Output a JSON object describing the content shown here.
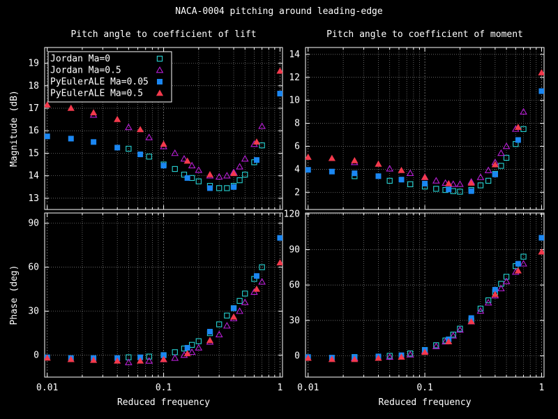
{
  "suptitle": "NACA-0004 pitching around leading-edge",
  "colors": {
    "jordan_ma0": "#27d3d3",
    "jordan_ma05": "#b81fd6",
    "pyeuler_ma005": "#1b87f2",
    "pyeuler_ma05": "#f43a4d"
  },
  "chart_data": [
    {
      "id": "lift-mag",
      "type": "scatter",
      "title": "Pitch angle to coefficient of lift",
      "ylabel": "Magnitude (dB)",
      "xlabel": "",
      "xscale": "log",
      "xlim": [
        0.0095,
        1.05
      ],
      "ylim": [
        12.5,
        19.7
      ],
      "yticks": [
        13,
        14,
        15,
        16,
        17,
        18,
        19
      ],
      "grid": true,
      "legend": "top-left",
      "series": [
        {
          "name": "Jordan Ma=0",
          "marker": "open-square",
          "color": "#27d3d3",
          "points": [
            [
              0.05,
              15.2
            ],
            [
              0.075,
              14.85
            ],
            [
              0.1,
              14.5
            ],
            [
              0.125,
              14.3
            ],
            [
              0.15,
              14.05
            ],
            [
              0.175,
              13.9
            ],
            [
              0.2,
              13.75
            ],
            [
              0.25,
              13.55
            ],
            [
              0.3,
              13.45
            ],
            [
              0.35,
              13.45
            ],
            [
              0.4,
              13.55
            ],
            [
              0.45,
              13.8
            ],
            [
              0.5,
              14.05
            ],
            [
              0.6,
              14.6
            ],
            [
              0.7,
              15.35
            ]
          ]
        },
        {
          "name": "Jordan Ma=0.5",
          "marker": "open-triangle",
          "color": "#b81fd6",
          "points": [
            [
              0.025,
              16.7
            ],
            [
              0.05,
              16.15
            ],
            [
              0.075,
              15.7
            ],
            [
              0.1,
              15.3
            ],
            [
              0.125,
              15.0
            ],
            [
              0.15,
              14.75
            ],
            [
              0.175,
              14.45
            ],
            [
              0.2,
              14.25
            ],
            [
              0.25,
              14.0
            ],
            [
              0.3,
              13.95
            ],
            [
              0.35,
              14.0
            ],
            [
              0.4,
              14.15
            ],
            [
              0.45,
              14.4
            ],
            [
              0.5,
              14.75
            ],
            [
              0.6,
              15.4
            ],
            [
              0.7,
              16.2
            ]
          ]
        },
        {
          "name": "PyEulerALE Ma=0.05",
          "marker": "filled-square",
          "color": "#1b87f2",
          "points": [
            [
              0.01,
              15.75
            ],
            [
              0.016,
              15.65
            ],
            [
              0.025,
              15.5
            ],
            [
              0.04,
              15.25
            ],
            [
              0.063,
              14.95
            ],
            [
              0.1,
              14.45
            ],
            [
              0.16,
              13.9
            ],
            [
              0.25,
              13.45
            ],
            [
              0.4,
              13.5
            ],
            [
              0.63,
              14.7
            ],
            [
              1.0,
              17.65
            ]
          ]
        },
        {
          "name": "PyEulerALE Ma=0.5",
          "marker": "filled-triangle",
          "color": "#f43a4d",
          "points": [
            [
              0.01,
              17.15
            ],
            [
              0.016,
              17.0
            ],
            [
              0.025,
              16.8
            ],
            [
              0.04,
              16.5
            ],
            [
              0.063,
              16.05
            ],
            [
              0.1,
              15.4
            ],
            [
              0.16,
              14.65
            ],
            [
              0.25,
              14.05
            ],
            [
              0.4,
              14.1
            ],
            [
              0.63,
              15.5
            ],
            [
              1.0,
              18.65
            ]
          ]
        }
      ]
    },
    {
      "id": "moment-mag",
      "type": "scatter",
      "title": "Pitch angle to coefficient of moment",
      "ylabel": "",
      "xlabel": "",
      "xscale": "log",
      "xlim": [
        0.0095,
        1.05
      ],
      "ylim": [
        0.5,
        14.6
      ],
      "yticks": [
        2,
        4,
        6,
        8,
        10,
        12,
        14
      ],
      "grid": true,
      "series": [
        {
          "name": "Jordan Ma=0",
          "marker": "open-square",
          "color": "#27d3d3",
          "points": [
            [
              0.025,
              3.4
            ],
            [
              0.05,
              3.0
            ],
            [
              0.075,
              2.7
            ],
            [
              0.1,
              2.5
            ],
            [
              0.125,
              2.3
            ],
            [
              0.15,
              2.2
            ],
            [
              0.175,
              2.1
            ],
            [
              0.2,
              2.05
            ],
            [
              0.25,
              2.2
            ],
            [
              0.3,
              2.6
            ],
            [
              0.35,
              3.0
            ],
            [
              0.4,
              3.6
            ],
            [
              0.45,
              4.3
            ],
            [
              0.5,
              5.0
            ],
            [
              0.6,
              6.2
            ],
            [
              0.7,
              7.5
            ]
          ]
        },
        {
          "name": "Jordan Ma=0.5",
          "marker": "open-triangle",
          "color": "#b81fd6",
          "points": [
            [
              0.025,
              4.6
            ],
            [
              0.05,
              4.05
            ],
            [
              0.075,
              3.65
            ],
            [
              0.1,
              3.3
            ],
            [
              0.125,
              3.0
            ],
            [
              0.15,
              2.8
            ],
            [
              0.175,
              2.7
            ],
            [
              0.2,
              2.7
            ],
            [
              0.25,
              2.9
            ],
            [
              0.3,
              3.3
            ],
            [
              0.35,
              3.9
            ],
            [
              0.4,
              4.6
            ],
            [
              0.45,
              5.4
            ],
            [
              0.5,
              6.0
            ],
            [
              0.6,
              7.5
            ],
            [
              0.7,
              9.0
            ]
          ]
        },
        {
          "name": "PyEulerALE Ma=0.05",
          "marker": "filled-square",
          "color": "#1b87f2",
          "points": [
            [
              0.01,
              3.95
            ],
            [
              0.016,
              3.8
            ],
            [
              0.025,
              3.65
            ],
            [
              0.04,
              3.4
            ],
            [
              0.063,
              3.1
            ],
            [
              0.1,
              2.75
            ],
            [
              0.16,
              2.25
            ],
            [
              0.25,
              2.1
            ],
            [
              0.4,
              3.55
            ],
            [
              0.63,
              6.55
            ],
            [
              1.0,
              10.8
            ]
          ]
        },
        {
          "name": "PyEulerALE Ma=0.5",
          "marker": "filled-triangle",
          "color": "#f43a4d",
          "points": [
            [
              0.01,
              5.05
            ],
            [
              0.016,
              4.95
            ],
            [
              0.025,
              4.75
            ],
            [
              0.04,
              4.45
            ],
            [
              0.063,
              3.9
            ],
            [
              0.1,
              3.3
            ],
            [
              0.16,
              2.75
            ],
            [
              0.25,
              2.8
            ],
            [
              0.4,
              4.4
            ],
            [
              0.63,
              7.65
            ],
            [
              1.0,
              12.4
            ]
          ]
        }
      ]
    },
    {
      "id": "lift-phase",
      "type": "scatter",
      "title": "",
      "ylabel": "Phase (deg)",
      "xlabel": "Reduced frequency",
      "xscale": "log",
      "xlim": [
        0.0095,
        1.05
      ],
      "ylim": [
        -15,
        97
      ],
      "yticks": [
        0,
        30,
        60,
        90
      ],
      "xticks": [
        [
          0.01,
          "0.01"
        ],
        [
          0.1,
          "0.1"
        ],
        [
          1,
          "1"
        ]
      ],
      "grid": true,
      "series": [
        {
          "name": "Jordan Ma=0",
          "marker": "open-square",
          "color": "#27d3d3",
          "points": [
            [
              0.05,
              -1.5
            ],
            [
              0.075,
              -1
            ],
            [
              0.1,
              0
            ],
            [
              0.125,
              2
            ],
            [
              0.15,
              4.5
            ],
            [
              0.175,
              7
            ],
            [
              0.2,
              9.5
            ],
            [
              0.25,
              15
            ],
            [
              0.3,
              21
            ],
            [
              0.35,
              27
            ],
            [
              0.4,
              32
            ],
            [
              0.45,
              37
            ],
            [
              0.5,
              42
            ],
            [
              0.6,
              52
            ],
            [
              0.7,
              60
            ]
          ]
        },
        {
          "name": "Jordan Ma=0.5",
          "marker": "open-triangle",
          "color": "#b81fd6",
          "points": [
            [
              0.05,
              -5
            ],
            [
              0.075,
              -4
            ],
            [
              0.1,
              -3
            ],
            [
              0.125,
              -2
            ],
            [
              0.15,
              0
            ],
            [
              0.175,
              2
            ],
            [
              0.2,
              5
            ],
            [
              0.25,
              9
            ],
            [
              0.3,
              14
            ],
            [
              0.35,
              20
            ],
            [
              0.4,
              25
            ],
            [
              0.45,
              30
            ],
            [
              0.5,
              36
            ],
            [
              0.6,
              43
            ],
            [
              0.7,
              50
            ]
          ]
        },
        {
          "name": "PyEulerALE Ma=0.05",
          "marker": "filled-square",
          "color": "#1b87f2",
          "points": [
            [
              0.01,
              -1.5
            ],
            [
              0.016,
              -2
            ],
            [
              0.025,
              -2
            ],
            [
              0.04,
              -2
            ],
            [
              0.063,
              -1.5
            ],
            [
              0.1,
              0
            ],
            [
              0.16,
              5
            ],
            [
              0.25,
              16
            ],
            [
              0.4,
              32
            ],
            [
              0.63,
              54
            ],
            [
              1.0,
              80
            ]
          ]
        },
        {
          "name": "PyEulerALE Ma=0.5",
          "marker": "filled-triangle",
          "color": "#f43a4d",
          "points": [
            [
              0.01,
              -2
            ],
            [
              0.016,
              -3
            ],
            [
              0.025,
              -3.5
            ],
            [
              0.04,
              -4
            ],
            [
              0.063,
              -4
            ],
            [
              0.1,
              -3
            ],
            [
              0.16,
              1
            ],
            [
              0.25,
              10
            ],
            [
              0.4,
              26
            ],
            [
              0.63,
              45
            ],
            [
              1.0,
              63
            ]
          ]
        }
      ]
    },
    {
      "id": "moment-phase",
      "type": "scatter",
      "title": "",
      "ylabel": "",
      "xlabel": "Reduced frequency",
      "xscale": "log",
      "xlim": [
        0.0095,
        1.05
      ],
      "ylim": [
        -18,
        121
      ],
      "yticks": [
        0,
        30,
        60,
        90,
        120
      ],
      "xticks": [
        [
          0.01,
          "0.01"
        ],
        [
          0.1,
          "0.1"
        ],
        [
          1,
          "1"
        ]
      ],
      "grid": true,
      "series": [
        {
          "name": "Jordan Ma=0",
          "marker": "open-square",
          "color": "#27d3d3",
          "points": [
            [
              0.025,
              -1
            ],
            [
              0.05,
              0
            ],
            [
              0.075,
              2
            ],
            [
              0.1,
              5
            ],
            [
              0.125,
              9
            ],
            [
              0.15,
              13
            ],
            [
              0.175,
              18
            ],
            [
              0.2,
              23
            ],
            [
              0.25,
              30
            ],
            [
              0.3,
              40
            ],
            [
              0.35,
              47
            ],
            [
              0.4,
              54
            ],
            [
              0.45,
              61
            ],
            [
              0.5,
              67
            ],
            [
              0.6,
              76
            ],
            [
              0.7,
              84
            ]
          ]
        },
        {
          "name": "Jordan Ma=0.5",
          "marker": "open-triangle",
          "color": "#b81fd6",
          "points": [
            [
              0.025,
              -2
            ],
            [
              0.05,
              -1
            ],
            [
              0.075,
              1
            ],
            [
              0.1,
              4
            ],
            [
              0.125,
              8
            ],
            [
              0.15,
              12
            ],
            [
              0.175,
              17
            ],
            [
              0.2,
              22
            ],
            [
              0.25,
              29
            ],
            [
              0.3,
              38
            ],
            [
              0.35,
              45
            ],
            [
              0.4,
              51
            ],
            [
              0.45,
              57
            ],
            [
              0.5,
              63
            ],
            [
              0.6,
              71
            ],
            [
              0.7,
              78
            ]
          ]
        },
        {
          "name": "PyEulerALE Ma=0.05",
          "marker": "filled-square",
          "color": "#1b87f2",
          "points": [
            [
              0.01,
              -1
            ],
            [
              0.016,
              -1.5
            ],
            [
              0.025,
              -1
            ],
            [
              0.04,
              -0.5
            ],
            [
              0.063,
              0.5
            ],
            [
              0.1,
              5
            ],
            [
              0.16,
              14
            ],
            [
              0.25,
              32
            ],
            [
              0.4,
              56
            ],
            [
              0.63,
              78
            ],
            [
              1.0,
              100
            ]
          ]
        },
        {
          "name": "PyEulerALE Ma=0.5",
          "marker": "filled-triangle",
          "color": "#f43a4d",
          "points": [
            [
              0.01,
              -2
            ],
            [
              0.016,
              -3
            ],
            [
              0.025,
              -3
            ],
            [
              0.04,
              -2
            ],
            [
              0.063,
              -1
            ],
            [
              0.1,
              3
            ],
            [
              0.16,
              12
            ],
            [
              0.25,
              29
            ],
            [
              0.4,
              52
            ],
            [
              0.63,
              72
            ],
            [
              1.0,
              88
            ]
          ]
        }
      ]
    }
  ]
}
